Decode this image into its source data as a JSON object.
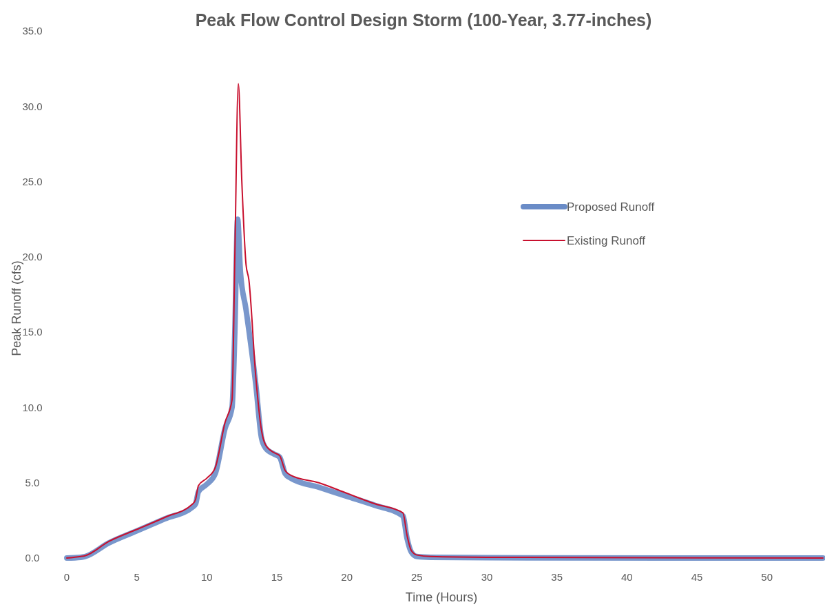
{
  "chart_data": {
    "type": "line",
    "title": "Peak Flow Control Design Storm (100-Year, 3.77-inches)",
    "xlabel": "Time (Hours)",
    "ylabel": "Peak Runoff (cfs)",
    "xlim": [
      0,
      54
    ],
    "xticks": [
      0,
      5,
      10,
      15,
      20,
      25,
      30,
      35,
      40,
      45,
      50
    ],
    "ylim": [
      0,
      35
    ],
    "yticks": [
      {
        "value": 0,
        "label": "0.0"
      },
      {
        "value": 5,
        "label": "5.0"
      },
      {
        "value": 10,
        "label": "10.0"
      },
      {
        "value": 15,
        "label": "15.0"
      },
      {
        "value": 20,
        "label": "20.0"
      },
      {
        "value": 25,
        "label": "25.0"
      },
      {
        "value": 30,
        "label": "30.0"
      },
      {
        "value": 35,
        "label": "35.0"
      }
    ],
    "grid": false,
    "legend": "right",
    "line_style": "solid",
    "series": [
      {
        "name": "Proposed Runoff",
        "color": "#6a8cc7",
        "x": [
          0,
          1,
          1.3,
          3,
          5,
          7,
          9,
          9.2,
          9.4,
          10,
          10.6,
          11.3,
          11.8,
          12,
          12.2,
          12.4,
          12.8,
          13.5,
          13.9,
          14.2,
          14.8,
          15.2,
          15.6,
          16,
          18,
          20,
          22,
          24,
          24.3,
          24.6,
          25,
          26,
          30,
          54
        ],
        "values": [
          0,
          0.05,
          0.1,
          1,
          1.8,
          2.6,
          3.4,
          3.6,
          4.4,
          4.9,
          5.6,
          8.6,
          10,
          15,
          22.5,
          19,
          16.5,
          11.5,
          8,
          7.3,
          6.9,
          6.7,
          5.6,
          5.3,
          4.7,
          4.1,
          3.5,
          2.8,
          1.3,
          0.4,
          0.1,
          0.05,
          0.02,
          0
        ]
      },
      {
        "name": "Existing Runoff",
        "color": "#c8102e",
        "x": [
          0,
          1,
          1.3,
          3,
          5,
          7,
          9,
          9.2,
          9.4,
          10,
          10.6,
          11.3,
          11.8,
          12,
          12.25,
          12.5,
          12.8,
          13,
          13.5,
          13.9,
          14.2,
          14.8,
          15.2,
          15.6,
          16,
          18,
          20,
          22,
          24,
          24.3,
          24.6,
          25,
          26,
          30,
          54
        ],
        "values": [
          0,
          0.1,
          0.15,
          1.1,
          1.9,
          2.7,
          3.6,
          3.9,
          4.8,
          5.3,
          6,
          9,
          10.5,
          20,
          31.5,
          25,
          19.5,
          18.5,
          12,
          8.5,
          7.5,
          7,
          6.8,
          5.8,
          5.5,
          5,
          4.3,
          3.6,
          3,
          1.5,
          0.5,
          0.2,
          0.1,
          0.05,
          0
        ]
      }
    ]
  }
}
